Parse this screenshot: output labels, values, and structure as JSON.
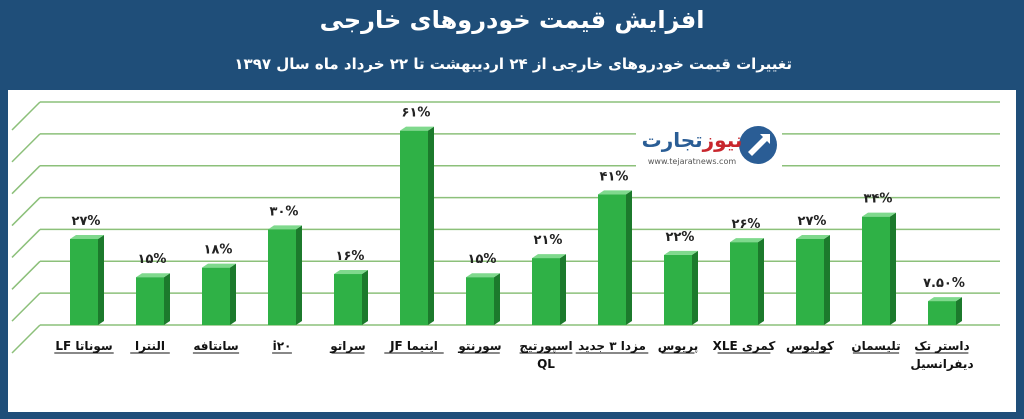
{
  "header": {
    "title": "افزایش قیمت خودروهای خارجی",
    "subtitle": "تغییرات قیمت خودروهای خارجی از ۲۴ اردیبهشت تا ۲۲ خرداد ماه سال ۱۳۹۷"
  },
  "logo": {
    "name": "تجارت نیوز",
    "name_part1": "تجارت",
    "name_part2": "نیوز",
    "url": "www.tejaratnews.com"
  },
  "colors": {
    "background": "#1f4e79",
    "bar": "#2fb146",
    "bar_dark": "#1c7a2c",
    "grid": "#8cc07a",
    "logo_blue": "#2a5d95",
    "logo_red": "#c8262d"
  },
  "chart_data": {
    "type": "bar",
    "title": "",
    "ylim": [
      0,
      70
    ],
    "grid": true,
    "categories": [
      [
        "سوناتا LF"
      ],
      [
        "النترا"
      ],
      [
        "سانتافه"
      ],
      [
        "i۲۰"
      ],
      [
        "سراتو"
      ],
      [
        "ایتیما JF"
      ],
      [
        "سورنتو"
      ],
      [
        "اسپورتیج",
        "QL"
      ],
      [
        "مزدا ۳ جدید"
      ],
      [
        "پریوس"
      ],
      [
        "کمری XLE"
      ],
      [
        "کولیوس"
      ],
      [
        "تلیسمان"
      ],
      [
        "داستر تک",
        "دیفرانسیل"
      ]
    ],
    "values": [
      27,
      15,
      18,
      30,
      16,
      61,
      15,
      21,
      41,
      22,
      26,
      27,
      34,
      7.5
    ],
    "data_labels": [
      "۲۷%",
      "۱۵%",
      "۱۸%",
      "۳۰%",
      "۱۶%",
      "۶۱%",
      "۱۵%",
      "۲۱%",
      "۴۱%",
      "۲۲%",
      "۲۶%",
      "۲۷%",
      "۳۴%",
      "۷.۵۰%"
    ]
  }
}
